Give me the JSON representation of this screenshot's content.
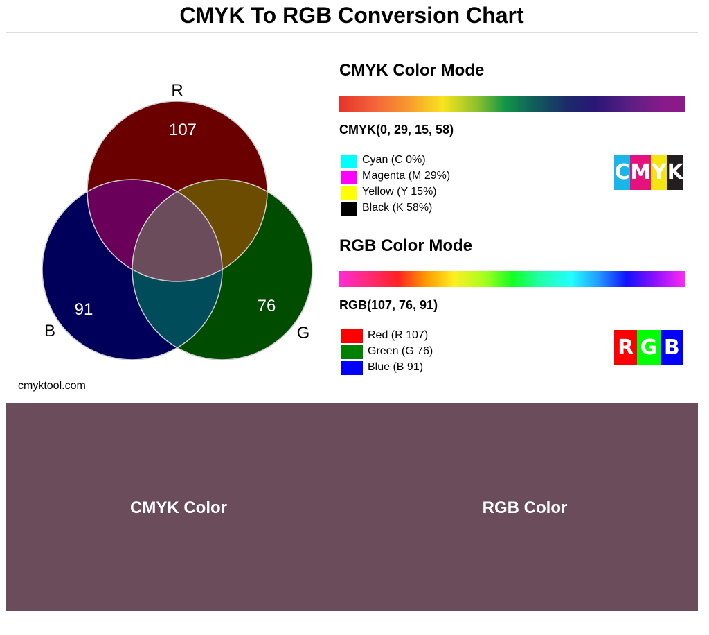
{
  "title": "CMYK To RGB Conversion Chart",
  "watermark": "cmyktool.com",
  "venn": {
    "labels": {
      "r": "R",
      "g": "G",
      "b": "B"
    },
    "values": {
      "r": "107",
      "g": "76",
      "b": "91"
    },
    "colors": {
      "r": "#6b0000",
      "g": "#004c00",
      "b": "#00005b",
      "rg": "#6b4c00",
      "rb": "#6b005b",
      "gb": "#004c5b",
      "center": "#6b4c5b",
      "stroke": "#cccccc",
      "text": "#ffffff"
    }
  },
  "cmyk": {
    "heading": "CMYK Color Mode",
    "code": "CMYK(0, 29, 15, 58)",
    "legend": [
      {
        "label": "Cyan (C 0%)",
        "color": "#00ffff"
      },
      {
        "label": "Magenta (M 29%)",
        "color": "#ff00ff"
      },
      {
        "label": "Yellow (Y 15%)",
        "color": "#ffff00"
      },
      {
        "label": "Black (K 58%)",
        "color": "#000000"
      }
    ],
    "badge": [
      {
        "letter": "C",
        "color": "#19b6e7"
      },
      {
        "letter": "M",
        "color": "#e5127d"
      },
      {
        "letter": "Y",
        "color": "#f6e411"
      },
      {
        "letter": "K",
        "color": "#231f20"
      }
    ]
  },
  "rgb": {
    "heading": "RGB Color Mode",
    "code": "RGB(107, 76, 91)",
    "legend": [
      {
        "label": "Red (R 107)",
        "color": "#ff0000"
      },
      {
        "label": "Green (G 76)",
        "color": "#008000"
      },
      {
        "label": "Blue (B 91)",
        "color": "#0000ff"
      }
    ],
    "badge": [
      {
        "letter": "R",
        "color": "#ff0000"
      },
      {
        "letter": "G",
        "color": "#00ff00"
      },
      {
        "letter": "B",
        "color": "#0000ff"
      }
    ]
  },
  "sample": {
    "color": "#6b4c5b",
    "cmyk_label": "CMYK Color",
    "rgb_label": "RGB Color"
  }
}
